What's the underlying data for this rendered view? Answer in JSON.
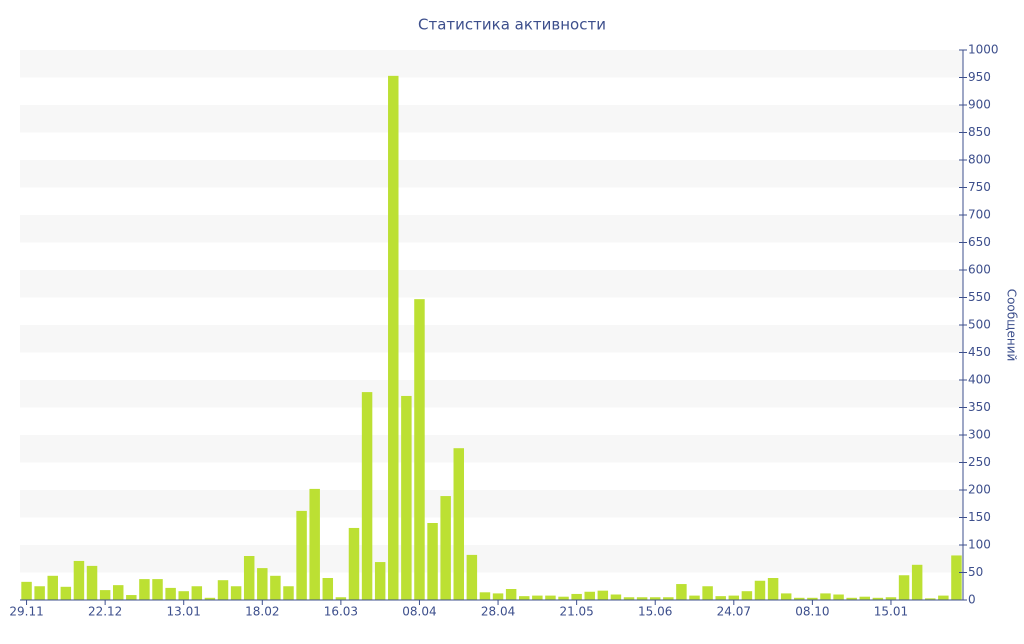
{
  "chart_data": {
    "type": "bar",
    "title": "Статистика активности",
    "y_axis_label": "Сообщений",
    "categories": [
      "29.11",
      null,
      null,
      null,
      null,
      null,
      "22.12",
      null,
      null,
      null,
      null,
      null,
      "13.01",
      null,
      null,
      null,
      null,
      null,
      "18.02",
      null,
      null,
      null,
      null,
      null,
      "16.03",
      null,
      null,
      null,
      null,
      null,
      "08.04",
      null,
      null,
      null,
      null,
      null,
      "28.04",
      null,
      null,
      null,
      null,
      null,
      "21.05",
      null,
      null,
      null,
      null,
      null,
      "15.06",
      null,
      null,
      null,
      null,
      null,
      "24.07",
      null,
      null,
      null,
      null,
      null,
      "08.10",
      null,
      null,
      null,
      null,
      null,
      "15.01",
      null,
      null,
      null,
      null,
      null
    ],
    "values": [
      33,
      25,
      44,
      24,
      71,
      62,
      18,
      27,
      9,
      38,
      38,
      22,
      16,
      25,
      4,
      36,
      25,
      80,
      58,
      44,
      25,
      162,
      202,
      40,
      5,
      131,
      378,
      69,
      953,
      371,
      547,
      140,
      189,
      276,
      82,
      14,
      12,
      20,
      7,
      8,
      8,
      6,
      11,
      15,
      17,
      10,
      5,
      5,
      5,
      5,
      29,
      8,
      25,
      7,
      8,
      16,
      35,
      40,
      12,
      4,
      4,
      12,
      10,
      4,
      6,
      4,
      5,
      45,
      64,
      3,
      8,
      81
    ],
    "color": "#bce033",
    "ylim": [
      0,
      1000
    ],
    "yticks": [
      0,
      50,
      100,
      150,
      200,
      250,
      300,
      350,
      400,
      450,
      500,
      550,
      600,
      650,
      700,
      750,
      800,
      850,
      900,
      950,
      1000
    ],
    "y_axis_side": "right",
    "grid": "bands"
  }
}
